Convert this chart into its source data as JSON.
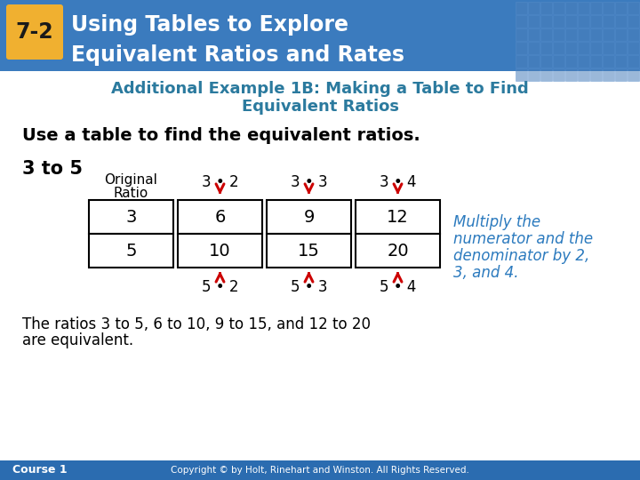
{
  "title_badge": "7-2",
  "title_line1": "Using Tables to Explore",
  "title_line2": "Equivalent Ratios and Rates",
  "header_bg": "#3B7BBE",
  "header_text_color": "#FFFFFF",
  "badge_bg": "#F0B030",
  "badge_text_color": "#1A1A1A",
  "subtitle_line1": "Additional Example 1B: Making a Table to Find",
  "subtitle_line2": "Equivalent Ratios",
  "subtitle_color": "#2B7A9E",
  "body_text": "Use a table to find the equivalent ratios.",
  "ratio_label": "3 to 5",
  "table_row1": [
    "3",
    "6",
    "9",
    "12"
  ],
  "table_row2": [
    "5",
    "10",
    "15",
    "20"
  ],
  "original_label_line1": "Original",
  "original_label_line2": "Ratio",
  "top_multipliers": [
    "3 • 2",
    "3 • 3",
    "3 • 4"
  ],
  "bottom_multipliers": [
    "5 • 2",
    "5 • 3",
    "5 • 4"
  ],
  "note_line1": "Multiply the",
  "note_line2": "numerator and the",
  "note_line3": "denominator by 2,",
  "note_line4": "3, and 4.",
  "note_color": "#2B7ABE",
  "conclusion_line1": "The ratios 3 to 5, 6 to 10, 9 to 15, and 12 to 20",
  "conclusion_line2": "are equivalent.",
  "footer_left": "Course 1",
  "footer_right": "Copyright © by Holt, Rinehart and Winston. All Rights Reserved.",
  "footer_bg": "#2B6CB0",
  "footer_text_color": "#FFFFFF",
  "bg_color": "#FFFFFF",
  "arrow_color": "#CC0000",
  "tile_color1": "#4A7FBB",
  "tile_color2": "#5A8FCC"
}
